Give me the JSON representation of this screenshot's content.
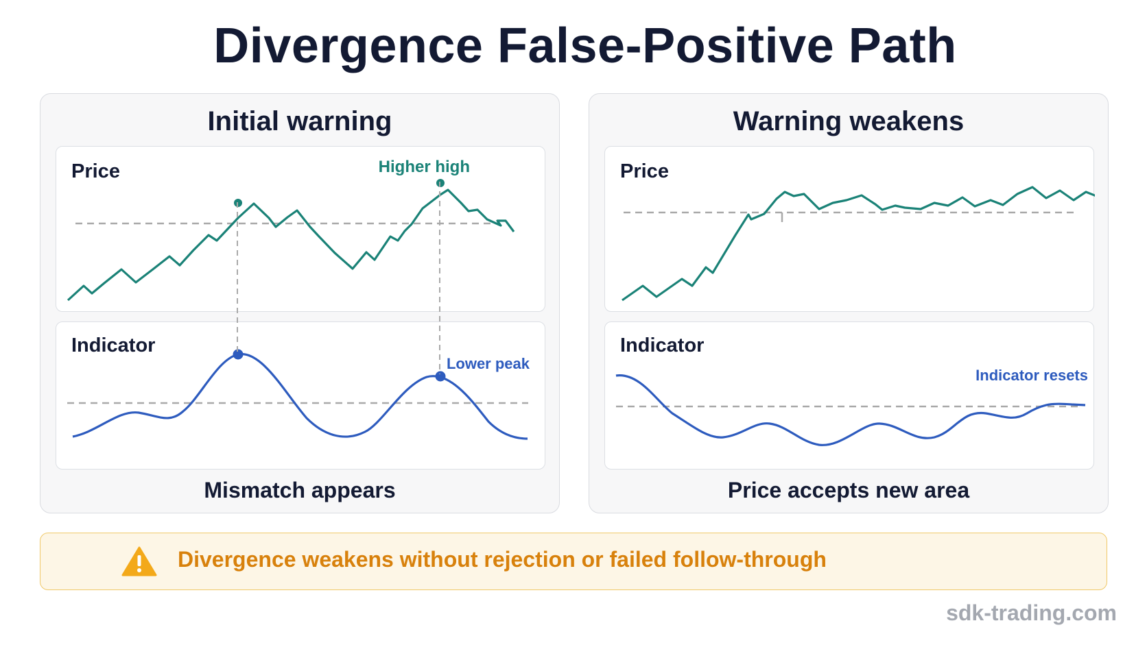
{
  "title": "Divergence False-Positive Path",
  "panels": [
    {
      "title": "Initial warning",
      "price_label": "Price",
      "indicator_label": "Indicator",
      "price_annotation": "Higher high",
      "indicator_annotation": "Lower peak",
      "caption": "Mismatch appears"
    },
    {
      "title": "Warning weakens",
      "price_label": "Price",
      "indicator_label": "Indicator",
      "indicator_annotation": "Indicator resets",
      "caption": "Price accepts new area"
    }
  ],
  "warning": {
    "icon": "warning-triangle-icon",
    "text": "Divergence weakens without rejection or failed follow-through"
  },
  "footer": "sdk-trading.com",
  "colors": {
    "price_line": "#1a8277",
    "indicator_line": "#2d5bbe",
    "warning_text": "#d8810c",
    "reference_line": "#a9a9a9"
  }
}
